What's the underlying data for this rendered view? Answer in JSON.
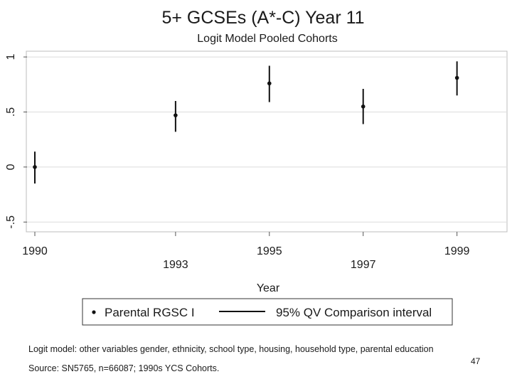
{
  "chart_data": {
    "type": "scatter",
    "title": "5+ GCSEs (A*-C) Year 11",
    "subtitle": "Logit Model Pooled Cohorts",
    "xlabel": "Year",
    "ylabel": "",
    "xlim": [
      1990,
      1999.9
    ],
    "ylim": [
      -0.55,
      1.02
    ],
    "x_ticks": [
      1990,
      1993,
      1995,
      1997,
      1999
    ],
    "y_ticks": [
      -0.5,
      0,
      0.5,
      1
    ],
    "y_tick_labels": [
      "-.5",
      "0",
      ".5",
      "1"
    ],
    "grid": true,
    "series": [
      {
        "name": "Parental RGSC I",
        "x": [
          1990,
          1993,
          1995,
          1997,
          1999
        ],
        "y": [
          0.0,
          0.47,
          0.76,
          0.55,
          0.81
        ]
      }
    ],
    "intervals": {
      "name": "95% QV Comparison interval",
      "x": [
        1990,
        1993,
        1995,
        1997,
        1999
      ],
      "lower": [
        -0.15,
        0.32,
        0.59,
        0.39,
        0.65
      ],
      "upper": [
        0.14,
        0.6,
        0.92,
        0.71,
        0.96
      ]
    },
    "legend": {
      "position": "bottom",
      "entries": [
        "Parental RGSC I",
        "95% QV Comparison interval"
      ]
    }
  },
  "footnote": {
    "model_note": "Logit model: other variables gender, ethnicity, school type, housing, household type, parental education",
    "source": "Source: SN5765, n=66087; 1990s YCS Cohorts."
  },
  "page_number": "47",
  "colors": {
    "text": "#1a1a1a",
    "grid": "#dcdcdc",
    "marker": "#111111"
  }
}
